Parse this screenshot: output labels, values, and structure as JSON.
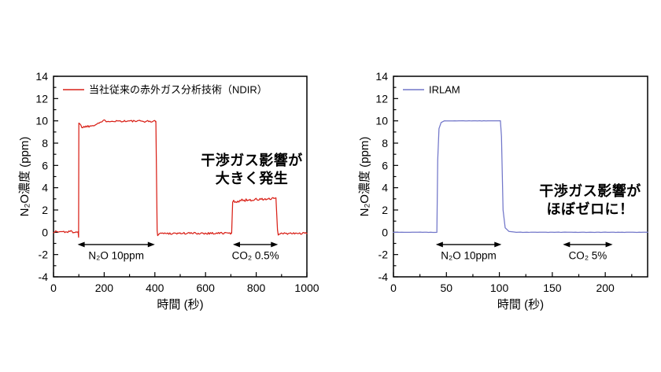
{
  "figure": {
    "background": "#ffffff",
    "description": "N2O interference comparison: conventional NDIR infrared gas analysis vs IRLAM"
  },
  "chart_data": [
    {
      "type": "line",
      "name": "ndir",
      "title": "",
      "xlabel": "時間 (秒)",
      "ylabel": "N₂O濃度 (ppm)",
      "xlim": [
        0,
        1000
      ],
      "ylim": [
        -4,
        14
      ],
      "x_major_ticks": [
        0,
        200,
        400,
        600,
        800,
        1000
      ],
      "x_minor_step": 100,
      "y_major_ticks": [
        -4,
        -2,
        0,
        2,
        4,
        6,
        8,
        10,
        12,
        14
      ],
      "y_minor_step": 1,
      "grid": false,
      "legend": {
        "label": "当社従来の赤外ガス分析技術（NDIR）",
        "position": "upper-left-inside"
      },
      "line_color": "#d92118",
      "annotation": {
        "lines": [
          "干渉ガス影響が",
          "大きく発生"
        ]
      },
      "gas_arrows": [
        {
          "label": "N₂O 10ppm",
          "x_start": 95,
          "x_end": 400,
          "y": -1.1,
          "label_y": -2.05
        },
        {
          "label": "CO₂ 0.5%",
          "x_start": 708,
          "x_end": 886,
          "y": -1.1,
          "label_y": -2.05
        }
      ],
      "series": [
        {
          "name": "当社従来の赤外ガス分析技術（NDIR）",
          "color": "#d92118",
          "baseline_ppm": 0,
          "n2o_plateau_ppm": 10,
          "co2_interference_ppm": 3,
          "segments": [
            {
              "pts": [
                [
                  0,
                  0.05
                ],
                [
                  97,
                  0.05
                ]
              ],
              "noise": 0.12,
              "step": 4
            },
            {
              "pts": [
                [
                  97,
                  0.05
                ],
                [
                  99,
                  -0.45
                ],
                [
                  100,
                  9.8
                ]
              ],
              "noise": 0,
              "step": 0
            },
            {
              "pts": [
                [
                  100,
                  9.8
                ],
                [
                  112,
                  9.45
                ],
                [
                  148,
                  9.55
                ],
                [
                  200,
                  10.0
                ]
              ],
              "noise": 0.1,
              "step": 4
            },
            {
              "pts": [
                [
                  200,
                  10.0
                ],
                [
                  404,
                  9.95
                ]
              ],
              "noise": 0.09,
              "step": 4
            },
            {
              "pts": [
                [
                  404,
                  9.95
                ],
                [
                  409,
                  0.15
                ],
                [
                  411,
                  -0.3
                ]
              ],
              "noise": 0,
              "step": 0
            },
            {
              "pts": [
                [
                  411,
                  -0.1
                ],
                [
                  703,
                  -0.08
                ]
              ],
              "noise": 0.1,
              "step": 4
            },
            {
              "pts": [
                [
                  703,
                  -0.08
                ],
                [
                  707,
                  2.7
                ]
              ],
              "noise": 0,
              "step": 0
            },
            {
              "pts": [
                [
                  707,
                  2.75
                ],
                [
                  760,
                  2.9
                ],
                [
                  878,
                  3.0
                ]
              ],
              "noise": 0.13,
              "step": 4
            },
            {
              "pts": [
                [
                  878,
                  3.0
                ],
                [
                  884,
                  0.2
                ],
                [
                  887,
                  -0.25
                ]
              ],
              "noise": 0,
              "step": 0
            },
            {
              "pts": [
                [
                  887,
                  -0.12
                ],
                [
                  1000,
                  -0.1
                ]
              ],
              "noise": 0.08,
              "step": 4
            }
          ]
        }
      ]
    },
    {
      "type": "line",
      "name": "irlam",
      "title": "",
      "xlabel": "時間 (秒)",
      "ylabel": "N₂O濃度 (ppm)",
      "xlim": [
        0,
        240
      ],
      "ylim": [
        -4,
        14
      ],
      "x_major_ticks": [
        0,
        50,
        100,
        150,
        200
      ],
      "x_minor_step": 25,
      "y_major_ticks": [
        -4,
        -2,
        0,
        2,
        4,
        6,
        8,
        10,
        12,
        14
      ],
      "y_minor_step": 1,
      "grid": false,
      "legend": {
        "label": "IRLAM",
        "position": "upper-left-inside"
      },
      "line_color": "#7176c9",
      "annotation": {
        "lines": [
          "干渉ガス影響が",
          "ほぼゼロに！"
        ]
      },
      "gas_arrows": [
        {
          "label": "N₂O 10ppm",
          "x_start": 40,
          "x_end": 102,
          "y": -1.1,
          "label_y": -2.05
        },
        {
          "label": "CO₂ 5%",
          "x_start": 160,
          "x_end": 207,
          "y": -1.1,
          "label_y": -2.05
        }
      ],
      "series": [
        {
          "name": "IRLAM",
          "color": "#7176c9",
          "baseline_ppm": 0,
          "n2o_plateau_ppm": 10,
          "co2_interference_ppm": 0,
          "segments": [
            {
              "pts": [
                [
                  0,
                  0.0
                ],
                [
                  41,
                  0.0
                ]
              ],
              "noise": 0.012,
              "step": 2
            },
            {
              "pts": [
                [
                  41,
                  0.0
                ],
                [
                  41.8,
                  6.5
                ],
                [
                  43,
                  9.3
                ],
                [
                  45,
                  9.85
                ],
                [
                  48,
                  10.0
                ]
              ],
              "noise": 0,
              "step": 0
            },
            {
              "pts": [
                [
                  48,
                  10.0
                ],
                [
                  101,
                  10.0
                ]
              ],
              "noise": 0.012,
              "step": 2
            },
            {
              "pts": [
                [
                  101,
                  10.0
                ],
                [
                  102,
                  8.6
                ],
                [
                  103.5,
                  2.0
                ],
                [
                  105.5,
                  0.4
                ],
                [
                  109,
                  0.08
                ],
                [
                  114,
                  0.02
                ]
              ],
              "noise": 0,
              "step": 0
            },
            {
              "pts": [
                [
                  114,
                  0.0
                ],
                [
                  240,
                  0.0
                ]
              ],
              "noise": 0.012,
              "step": 2
            }
          ]
        }
      ]
    }
  ]
}
